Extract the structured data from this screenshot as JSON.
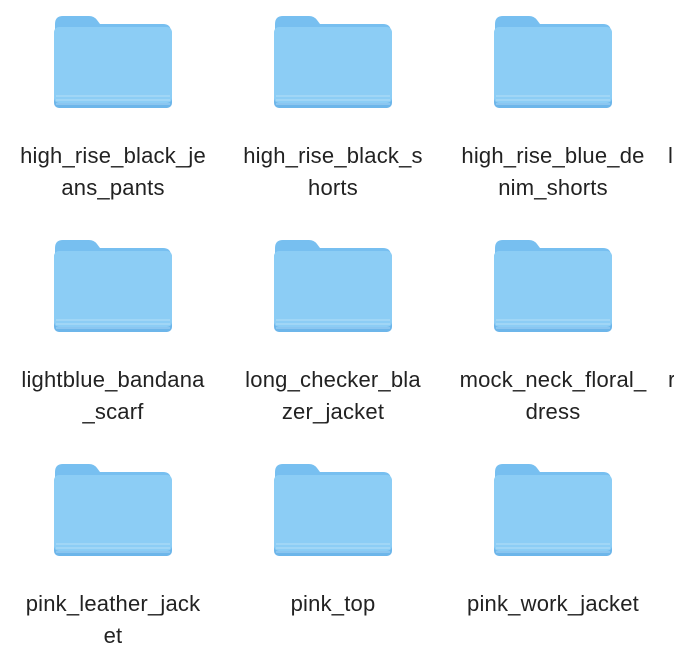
{
  "folders": [
    {
      "name": "high_rise_black_jeans_pants",
      "line1": "high_rise_black_je",
      "line2": "ans_pants"
    },
    {
      "name": "high_rise_black_shorts",
      "line1": "high_rise_black_s",
      "line2": "horts"
    },
    {
      "name": "high_rise_blue_denim_shorts",
      "line1": "high_rise_blue_de",
      "line2": "nim_shorts"
    },
    {
      "name": "lightblue_bandana_scarf",
      "line1": "lightblue_bandana",
      "line2": "_scarf"
    },
    {
      "name": "long_checker_blazer_jacket",
      "line1": "long_checker_bla",
      "line2": "zer_jacket"
    },
    {
      "name": "mock_neck_floral_dress",
      "line1": "mock_neck_floral_",
      "line2": "dress"
    },
    {
      "name": "pink_leather_jacket",
      "line1": "pink_leather_jack",
      "line2": "et"
    },
    {
      "name": "pink_top",
      "line1": "pink_top",
      "line2": ""
    },
    {
      "name": "pink_work_jacket",
      "line1": "pink_work_jacket",
      "line2": ""
    }
  ],
  "partial_column": [
    "l",
    "r"
  ],
  "colors": {
    "folder_body": "#8ccdf5",
    "folder_tab": "#77bff0",
    "folder_edge": "#6db6ea",
    "label_text": "#222222"
  },
  "icon": "folder-icon"
}
